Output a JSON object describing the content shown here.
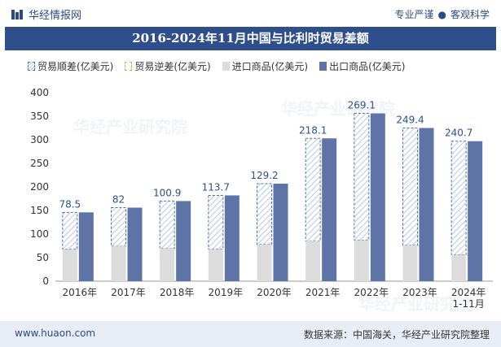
{
  "brand": {
    "name": "华经情报网",
    "tagline_left": "专业严谨",
    "tagline_right": "客观科学"
  },
  "title": "2016-2024年11月中国与比利时贸易差额",
  "legend": {
    "surplus": "贸易顺差(亿美元)",
    "deficit": "贸易逆差(亿美元)",
    "import": "进口商品(亿美元)",
    "export": "出口商品(亿美元)"
  },
  "colors": {
    "export": "#5e73a6",
    "import": "#dcdcdc",
    "surplus_border": "#4a72b3",
    "surplus_hatch": "#b8c9e4",
    "title_bg": "#2f4f8c"
  },
  "watermark": "华经产业研究院",
  "footer": {
    "url": "www.huaon.com",
    "source": "数据来源：中国海关，华经产业研究院整理"
  },
  "chart_data": {
    "type": "bar",
    "categories": [
      "2016年",
      "2017年",
      "2018年",
      "2019年",
      "2020年",
      "2021年",
      "2022年",
      "2023年",
      "2024年\n1-11月"
    ],
    "series": [
      {
        "name": "出口商品(亿美元)",
        "values": [
          146,
          156,
          170,
          182,
          207,
          303,
          356,
          325,
          297
        ]
      },
      {
        "name": "进口商品(亿美元)",
        "values": [
          68,
          74,
          69,
          68,
          78,
          85,
          87,
          76,
          56
        ]
      },
      {
        "name": "贸易顺差(亿美元)",
        "values": [
          78.5,
          82,
          100.9,
          113.7,
          129.2,
          218.1,
          269.1,
          249.4,
          240.7
        ]
      }
    ],
    "yticks": [
      0,
      50,
      100,
      150,
      200,
      250,
      300,
      350,
      400
    ],
    "ylim": [
      0,
      400
    ],
    "grid": false
  }
}
